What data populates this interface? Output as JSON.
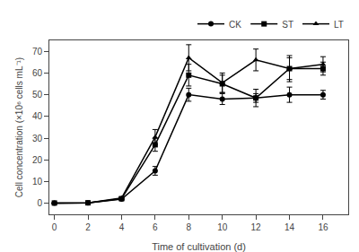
{
  "chart_data": {
    "type": "line",
    "x": [
      0,
      2,
      4,
      6,
      8,
      10,
      12,
      14,
      16
    ],
    "xlabel": "Time of cultivation (d)",
    "ylabel": "Cell concentration (×10⁶ cells mL⁻¹)",
    "xlim": [
      -0.3,
      17.5
    ],
    "ylim": [
      -5,
      75
    ],
    "xticks": [
      0,
      2,
      4,
      6,
      8,
      10,
      12,
      14,
      16
    ],
    "yticks": [
      0,
      10,
      20,
      30,
      40,
      50,
      60,
      70
    ],
    "grid": false,
    "legend": "upper right",
    "series": [
      {
        "name": "CK",
        "color": "#000000",
        "marker": "circle",
        "values": [
          0.2,
          0.3,
          2.0,
          15.0,
          50.0,
          48.0,
          48.5,
          50.0,
          50.0
        ],
        "errors": [
          0.1,
          0.1,
          0.5,
          2.0,
          3.0,
          2.5,
          2.0,
          3.5,
          2.0
        ]
      },
      {
        "name": "ST",
        "color": "#000000",
        "marker": "square",
        "values": [
          0.2,
          0.3,
          2.2,
          27.0,
          59.0,
          55.0,
          48.5,
          62.0,
          62.0
        ],
        "errors": [
          0.1,
          0.1,
          0.5,
          3.0,
          5.0,
          4.0,
          4.0,
          6.0,
          3.0
        ]
      },
      {
        "name": "LT",
        "color": "#000000",
        "marker": "triangle",
        "values": [
          0.2,
          0.3,
          2.5,
          30.5,
          67.0,
          55.5,
          66.0,
          62.0,
          64.0
        ],
        "errors": [
          0.1,
          0.1,
          0.5,
          3.5,
          6.0,
          4.5,
          5.0,
          5.0,
          3.5
        ]
      }
    ]
  }
}
